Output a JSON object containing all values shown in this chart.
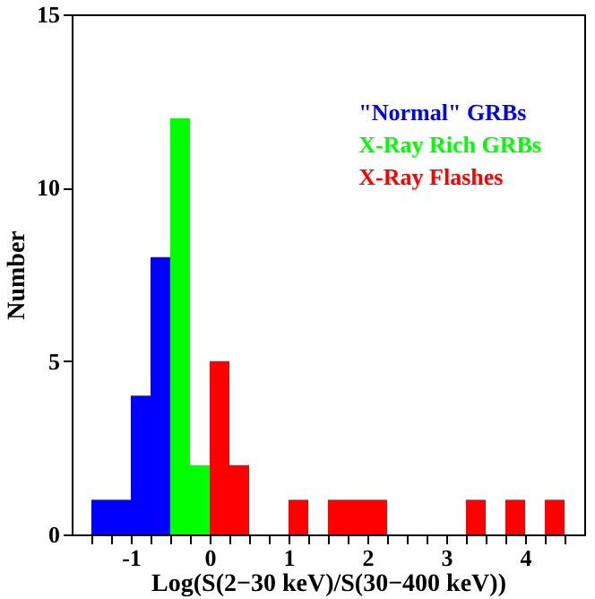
{
  "chart_data": {
    "type": "histogram",
    "xlabel": "Log(S(2−30 keV)/S(30−400 keV))",
    "ylabel": "Number",
    "bins": [
      -1.5,
      -1.25,
      -1.0,
      -0.75,
      -0.5,
      -0.25,
      0,
      0.25,
      0.5,
      0.75,
      1.0,
      1.25,
      1.5,
      1.75,
      2.0,
      2.25,
      2.5,
      2.75,
      3.0,
      3.25,
      3.5,
      3.75,
      4.0,
      4.25,
      4.5
    ],
    "series": [
      {
        "name": "\"Normal\" GRBs",
        "color": "#0000ff",
        "values": [
          1,
          1,
          4,
          8,
          null,
          null,
          null,
          null,
          null,
          null,
          null,
          null,
          null,
          null,
          null,
          null,
          null,
          null,
          null,
          null,
          null,
          null,
          null,
          null
        ]
      },
      {
        "name": "X-Ray Rich GRBs",
        "color": "#00ff00",
        "values": [
          null,
          null,
          null,
          null,
          12,
          2,
          null,
          null,
          null,
          null,
          null,
          null,
          null,
          null,
          null,
          null,
          null,
          null,
          null,
          null,
          null,
          null,
          null,
          null
        ]
      },
      {
        "name": "X-Ray Flashes",
        "color": "#ff0000",
        "values": [
          null,
          null,
          null,
          null,
          null,
          null,
          5,
          2,
          null,
          null,
          1,
          null,
          1,
          1,
          1,
          null,
          null,
          null,
          null,
          1,
          null,
          1,
          null,
          1
        ]
      }
    ],
    "xlim": [
      -1.75,
      4.75
    ],
    "xticks": [
      -1,
      0,
      1,
      2,
      3,
      4
    ],
    "ylim": [
      0,
      15
    ],
    "yticks": [
      0,
      5,
      10,
      15
    ],
    "legend": "top right",
    "grid": false
  }
}
